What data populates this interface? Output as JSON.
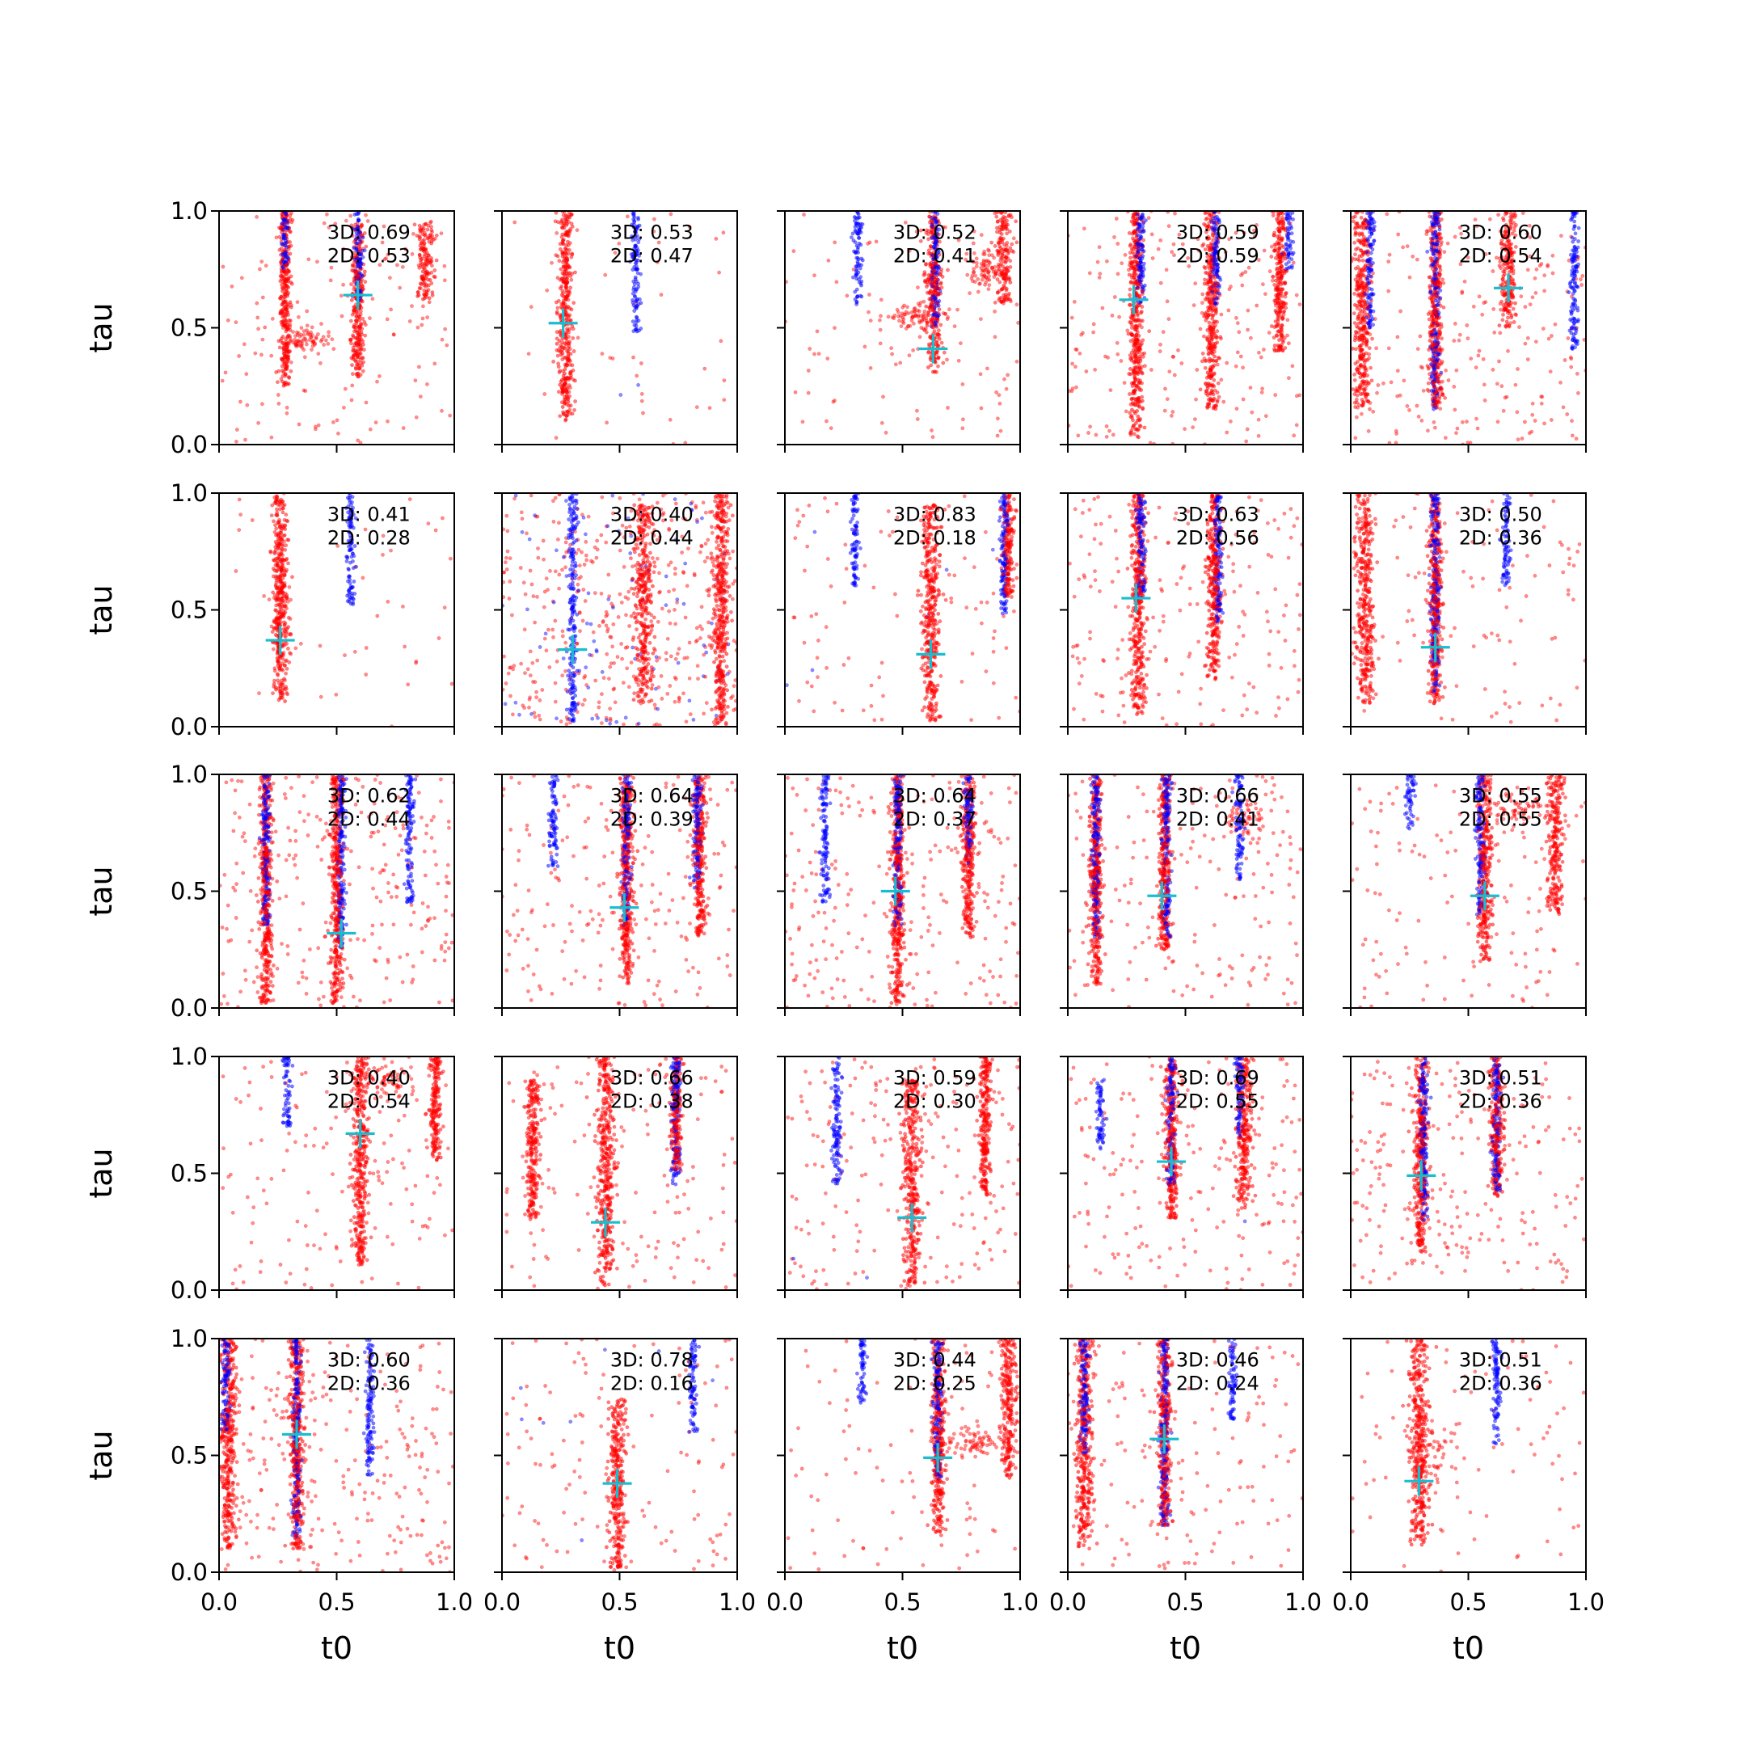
{
  "figure": {
    "xlabel": "t0",
    "ylabel": "tau",
    "x_ticks": [
      "0.0",
      "0.5",
      "1.0"
    ],
    "y_ticks": [
      "0.0",
      "0.5",
      "1.0"
    ],
    "colors": {
      "red_points": "#ff0000",
      "blue_points": "#0000ff",
      "marker": "#17becf"
    }
  },
  "chart_data": {
    "type": "scatter",
    "rows": 5,
    "cols": 5,
    "xlim": [
      0,
      1
    ],
    "ylim": [
      0,
      1
    ],
    "xlabel": "t0",
    "ylabel": "tau",
    "marker": "+",
    "panels": [
      {
        "row": 0,
        "col": 0,
        "label3d": "3D: 0.69",
        "label2d": "2D: 0.53",
        "marker": [
          0.59,
          0.64
        ],
        "blue_bands": [
          [
            0.28,
            0.75,
            1.0
          ],
          [
            0.59,
            0.6,
            1.0
          ]
        ],
        "red_bands": [
          [
            0.28,
            0.25,
            1.0,
            0.03
          ],
          [
            0.59,
            0.28,
            0.95,
            0.03
          ],
          [
            0.88,
            0.6,
            0.95,
            0.04
          ]
        ],
        "red_clusters": [
          [
            0.35,
            0.45,
            0.1,
            0.05
          ]
        ],
        "red_scatter": 140,
        "blue_scatter": 0
      },
      {
        "row": 0,
        "col": 1,
        "label3d": "3D: 0.53",
        "label2d": "2D: 0.47",
        "marker": [
          0.26,
          0.52
        ],
        "blue_bands": [
          [
            0.57,
            0.48,
            1.0
          ]
        ],
        "red_bands": [
          [
            0.27,
            0.1,
            1.0,
            0.035
          ]
        ],
        "red_clusters": [],
        "red_scatter": 45,
        "blue_scatter": 2
      },
      {
        "row": 0,
        "col": 2,
        "label3d": "3D: 0.52",
        "label2d": "2D: 0.41",
        "marker": [
          0.63,
          0.41
        ],
        "blue_bands": [
          [
            0.31,
            0.6,
            1.0
          ],
          [
            0.64,
            0.5,
            1.0
          ]
        ],
        "red_bands": [
          [
            0.63,
            0.3,
            1.0,
            0.04
          ],
          [
            0.93,
            0.6,
            1.0,
            0.04
          ]
        ],
        "red_clusters": [
          [
            0.55,
            0.55,
            0.12,
            0.05
          ],
          [
            0.85,
            0.75,
            0.06,
            0.08
          ]
        ],
        "red_scatter": 110,
        "blue_scatter": 0
      },
      {
        "row": 0,
        "col": 3,
        "label3d": "3D: 0.59",
        "label2d": "2D: 0.59",
        "marker": [
          0.28,
          0.62
        ],
        "blue_bands": [
          [
            0.31,
            0.6,
            1.0
          ],
          [
            0.63,
            0.6,
            1.0
          ],
          [
            0.94,
            0.75,
            1.0
          ]
        ],
        "red_bands": [
          [
            0.29,
            0.02,
            1.0,
            0.035
          ],
          [
            0.61,
            0.15,
            1.0,
            0.035
          ],
          [
            0.9,
            0.4,
            1.0,
            0.03
          ]
        ],
        "red_clusters": [],
        "red_scatter": 220,
        "blue_scatter": 0
      },
      {
        "row": 0,
        "col": 4,
        "label3d": "3D: 0.60",
        "label2d": "2D: 0.54",
        "marker": [
          0.67,
          0.67
        ],
        "blue_bands": [
          [
            0.08,
            0.5,
            1.0
          ],
          [
            0.36,
            0.15,
            1.0
          ],
          [
            0.95,
            0.4,
            1.0
          ]
        ],
        "red_bands": [
          [
            0.05,
            0.15,
            1.0,
            0.04
          ],
          [
            0.36,
            0.15,
            1.0,
            0.03
          ],
          [
            0.67,
            0.5,
            1.0,
            0.04
          ]
        ],
        "red_clusters": [],
        "red_scatter": 230,
        "blue_scatter": 0
      },
      {
        "row": 1,
        "col": 0,
        "label3d": "3D: 0.41",
        "label2d": "2D: 0.28",
        "marker": [
          0.26,
          0.37
        ],
        "blue_bands": [
          [
            0.56,
            0.52,
            1.0
          ]
        ],
        "red_bands": [
          [
            0.26,
            0.1,
            1.0,
            0.035
          ]
        ],
        "red_clusters": [
          [
            0.27,
            0.5,
            0.05,
            0.2
          ]
        ],
        "red_scatter": 40,
        "blue_scatter": 0
      },
      {
        "row": 1,
        "col": 1,
        "label3d": "3D: 0.40",
        "label2d": "2D: 0.44",
        "marker": [
          0.3,
          0.33
        ],
        "blue_bands": [
          [
            0.3,
            0.02,
            1.0
          ]
        ],
        "red_bands": [
          [
            0.6,
            0.1,
            0.95,
            0.05
          ],
          [
            0.93,
            0.0,
            1.0,
            0.04
          ]
        ],
        "red_clusters": [],
        "red_scatter": 420,
        "blue_scatter": 90
      },
      {
        "row": 1,
        "col": 2,
        "label3d": "3D: 0.83",
        "label2d": "2D: 0.18",
        "marker": [
          0.62,
          0.31
        ],
        "blue_bands": [
          [
            0.3,
            0.6,
            1.0
          ],
          [
            0.93,
            0.48,
            1.0
          ]
        ],
        "red_bands": [
          [
            0.62,
            0.02,
            0.95,
            0.045
          ],
          [
            0.95,
            0.55,
            1.0,
            0.03
          ]
        ],
        "red_clusters": [],
        "red_scatter": 100,
        "blue_scatter": 6
      },
      {
        "row": 1,
        "col": 3,
        "label3d": "3D: 0.63",
        "label2d": "2D: 0.56",
        "marker": [
          0.29,
          0.55
        ],
        "blue_bands": [
          [
            0.31,
            0.55,
            1.0
          ],
          [
            0.64,
            0.45,
            1.0
          ]
        ],
        "red_bands": [
          [
            0.3,
            0.05,
            1.0,
            0.035
          ],
          [
            0.62,
            0.2,
            1.0,
            0.035
          ]
        ],
        "red_clusters": [],
        "red_scatter": 190,
        "blue_scatter": 0
      },
      {
        "row": 1,
        "col": 4,
        "label3d": "3D: 0.50",
        "label2d": "2D: 0.36",
        "marker": [
          0.36,
          0.34
        ],
        "blue_bands": [
          [
            0.36,
            0.15,
            1.0
          ],
          [
            0.66,
            0.6,
            1.0
          ]
        ],
        "red_bands": [
          [
            0.06,
            0.1,
            1.0,
            0.045
          ],
          [
            0.36,
            0.1,
            1.0,
            0.03
          ]
        ],
        "red_clusters": [],
        "red_scatter": 110,
        "blue_scatter": 0
      },
      {
        "row": 2,
        "col": 0,
        "label3d": "3D: 0.62",
        "label2d": "2D: 0.44",
        "marker": [
          0.52,
          0.32
        ],
        "blue_bands": [
          [
            0.2,
            0.35,
            1.0
          ],
          [
            0.52,
            0.25,
            1.0
          ],
          [
            0.81,
            0.45,
            1.0
          ]
        ],
        "red_bands": [
          [
            0.2,
            0.02,
            1.0,
            0.03
          ],
          [
            0.5,
            0.02,
            1.0,
            0.03
          ]
        ],
        "red_clusters": [],
        "red_scatter": 260,
        "blue_scatter": 0
      },
      {
        "row": 2,
        "col": 1,
        "label3d": "3D: 0.64",
        "label2d": "2D: 0.39",
        "marker": [
          0.52,
          0.43
        ],
        "blue_bands": [
          [
            0.22,
            0.6,
            1.0
          ],
          [
            0.53,
            0.35,
            1.0
          ],
          [
            0.83,
            0.5,
            1.0
          ]
        ],
        "red_bands": [
          [
            0.53,
            0.1,
            1.0,
            0.035
          ],
          [
            0.84,
            0.3,
            1.0,
            0.03
          ]
        ],
        "red_clusters": [],
        "red_scatter": 200,
        "blue_scatter": 0
      },
      {
        "row": 2,
        "col": 2,
        "label3d": "3D: 0.64",
        "label2d": "2D: 0.37",
        "marker": [
          0.47,
          0.5
        ],
        "blue_bands": [
          [
            0.17,
            0.45,
            1.0
          ],
          [
            0.48,
            0.35,
            1.0
          ],
          [
            0.78,
            0.6,
            1.0
          ]
        ],
        "red_bands": [
          [
            0.48,
            0.02,
            1.0,
            0.03
          ],
          [
            0.78,
            0.3,
            1.0,
            0.03
          ]
        ],
        "red_clusters": [],
        "red_scatter": 230,
        "blue_scatter": 0
      },
      {
        "row": 2,
        "col": 3,
        "label3d": "3D: 0.66",
        "label2d": "2D: 0.41",
        "marker": [
          0.4,
          0.48
        ],
        "blue_bands": [
          [
            0.12,
            0.3,
            1.0
          ],
          [
            0.42,
            0.3,
            1.0
          ],
          [
            0.73,
            0.55,
            1.0
          ]
        ],
        "red_bands": [
          [
            0.12,
            0.1,
            1.0,
            0.03
          ],
          [
            0.41,
            0.25,
            1.0,
            0.03
          ]
        ],
        "red_clusters": [
          [
            0.75,
            0.8,
            0.1,
            0.1
          ]
        ],
        "red_scatter": 160,
        "blue_scatter": 0
      },
      {
        "row": 2,
        "col": 4,
        "label3d": "3D: 0.55",
        "label2d": "2D: 0.55",
        "marker": [
          0.57,
          0.48
        ],
        "blue_bands": [
          [
            0.25,
            0.75,
            1.0
          ],
          [
            0.55,
            0.4,
            1.0
          ]
        ],
        "red_bands": [
          [
            0.57,
            0.2,
            1.0,
            0.035
          ],
          [
            0.87,
            0.4,
            1.0,
            0.04
          ]
        ],
        "red_clusters": [
          [
            0.7,
            0.85,
            0.15,
            0.08
          ]
        ],
        "red_scatter": 130,
        "blue_scatter": 0
      },
      {
        "row": 3,
        "col": 0,
        "label3d": "3D: 0.40",
        "label2d": "2D: 0.54",
        "marker": [
          0.6,
          0.67
        ],
        "blue_bands": [
          [
            0.29,
            0.7,
            1.0
          ]
        ],
        "red_bands": [
          [
            0.6,
            0.1,
            1.0,
            0.035
          ],
          [
            0.92,
            0.55,
            1.0,
            0.03
          ]
        ],
        "red_clusters": [
          [
            0.7,
            0.88,
            0.15,
            0.07
          ]
        ],
        "red_scatter": 150,
        "blue_scatter": 0
      },
      {
        "row": 3,
        "col": 1,
        "label3d": "3D: 0.66",
        "label2d": "2D: 0.38",
        "marker": [
          0.44,
          0.29
        ],
        "blue_bands": [
          [
            0.74,
            0.45,
            1.0
          ]
        ],
        "red_bands": [
          [
            0.44,
            0.02,
            1.0,
            0.045
          ],
          [
            0.74,
            0.5,
            1.0,
            0.03
          ],
          [
            0.13,
            0.3,
            0.9,
            0.03
          ]
        ],
        "red_clusters": [],
        "red_scatter": 150,
        "blue_scatter": 0
      },
      {
        "row": 3,
        "col": 2,
        "label3d": "3D: 0.59",
        "label2d": "2D: 0.30",
        "marker": [
          0.54,
          0.31
        ],
        "blue_bands": [
          [
            0.22,
            0.45,
            1.0
          ]
        ],
        "red_bands": [
          [
            0.54,
            0.02,
            0.9,
            0.045
          ],
          [
            0.85,
            0.4,
            1.0,
            0.03
          ]
        ],
        "red_clusters": [],
        "red_scatter": 200,
        "blue_scatter": 2
      },
      {
        "row": 3,
        "col": 3,
        "label3d": "3D: 0.69",
        "label2d": "2D: 0.55",
        "marker": [
          0.44,
          0.55
        ],
        "blue_bands": [
          [
            0.44,
            0.45,
            1.0
          ],
          [
            0.73,
            0.65,
            1.0
          ],
          [
            0.14,
            0.6,
            0.9
          ]
        ],
        "red_bands": [
          [
            0.44,
            0.3,
            1.0,
            0.035
          ],
          [
            0.75,
            0.35,
            1.0,
            0.04
          ]
        ],
        "red_clusters": [],
        "red_scatter": 200,
        "blue_scatter": 1
      },
      {
        "row": 3,
        "col": 4,
        "label3d": "3D: 0.51",
        "label2d": "2D: 0.36",
        "marker": [
          0.3,
          0.49
        ],
        "blue_bands": [
          [
            0.31,
            0.3,
            1.0
          ],
          [
            0.62,
            0.42,
            1.0
          ]
        ],
        "red_bands": [
          [
            0.3,
            0.15,
            1.0,
            0.035
          ],
          [
            0.62,
            0.4,
            1.0,
            0.03
          ]
        ],
        "red_clusters": [],
        "red_scatter": 230,
        "blue_scatter": 0
      },
      {
        "row": 4,
        "col": 0,
        "label3d": "3D: 0.60",
        "label2d": "2D: 0.36",
        "marker": [
          0.33,
          0.59
        ],
        "blue_bands": [
          [
            0.33,
            0.15,
            1.0
          ],
          [
            0.64,
            0.4,
            1.0
          ],
          [
            0.03,
            0.6,
            1.0
          ]
        ],
        "red_bands": [
          [
            0.33,
            0.1,
            1.0,
            0.035
          ],
          [
            0.04,
            0.1,
            1.0,
            0.04
          ]
        ],
        "red_clusters": [],
        "red_scatter": 250,
        "blue_scatter": 0
      },
      {
        "row": 4,
        "col": 1,
        "label3d": "3D: 0.78",
        "label2d": "2D: 0.16",
        "marker": [
          0.49,
          0.38
        ],
        "blue_bands": [
          [
            0.81,
            0.6,
            1.0
          ]
        ],
        "red_bands": [
          [
            0.49,
            0.02,
            0.75,
            0.04
          ]
        ],
        "red_clusters": [],
        "red_scatter": 130,
        "blue_scatter": 8
      },
      {
        "row": 4,
        "col": 2,
        "label3d": "3D: 0.44",
        "label2d": "2D: 0.25",
        "marker": [
          0.65,
          0.49
        ],
        "blue_bands": [
          [
            0.33,
            0.72,
            1.0
          ],
          [
            0.65,
            0.4,
            1.0
          ]
        ],
        "red_bands": [
          [
            0.65,
            0.15,
            1.0,
            0.035
          ],
          [
            0.95,
            0.4,
            1.0,
            0.04
          ]
        ],
        "red_clusters": [
          [
            0.8,
            0.55,
            0.12,
            0.06
          ]
        ],
        "red_scatter": 90,
        "blue_scatter": 0
      },
      {
        "row": 4,
        "col": 3,
        "label3d": "3D: 0.46",
        "label2d": "2D: 0.24",
        "marker": [
          0.41,
          0.57
        ],
        "blue_bands": [
          [
            0.41,
            0.2,
            1.0
          ],
          [
            0.7,
            0.65,
            1.0
          ],
          [
            0.07,
            0.5,
            1.0
          ]
        ],
        "red_bands": [
          [
            0.07,
            0.1,
            1.0,
            0.04
          ],
          [
            0.41,
            0.2,
            1.0,
            0.03
          ]
        ],
        "red_clusters": [],
        "red_scatter": 140,
        "blue_scatter": 0
      },
      {
        "row": 4,
        "col": 4,
        "label3d": "3D: 0.51",
        "label2d": "2D: 0.36",
        "marker": [
          0.29,
          0.39
        ],
        "blue_bands": [
          [
            0.62,
            0.55,
            1.0
          ]
        ],
        "red_bands": [
          [
            0.29,
            0.1,
            1.0,
            0.045
          ]
        ],
        "red_clusters": [
          [
            0.35,
            0.5,
            0.1,
            0.15
          ]
        ],
        "red_scatter": 90,
        "blue_scatter": 0
      }
    ]
  }
}
